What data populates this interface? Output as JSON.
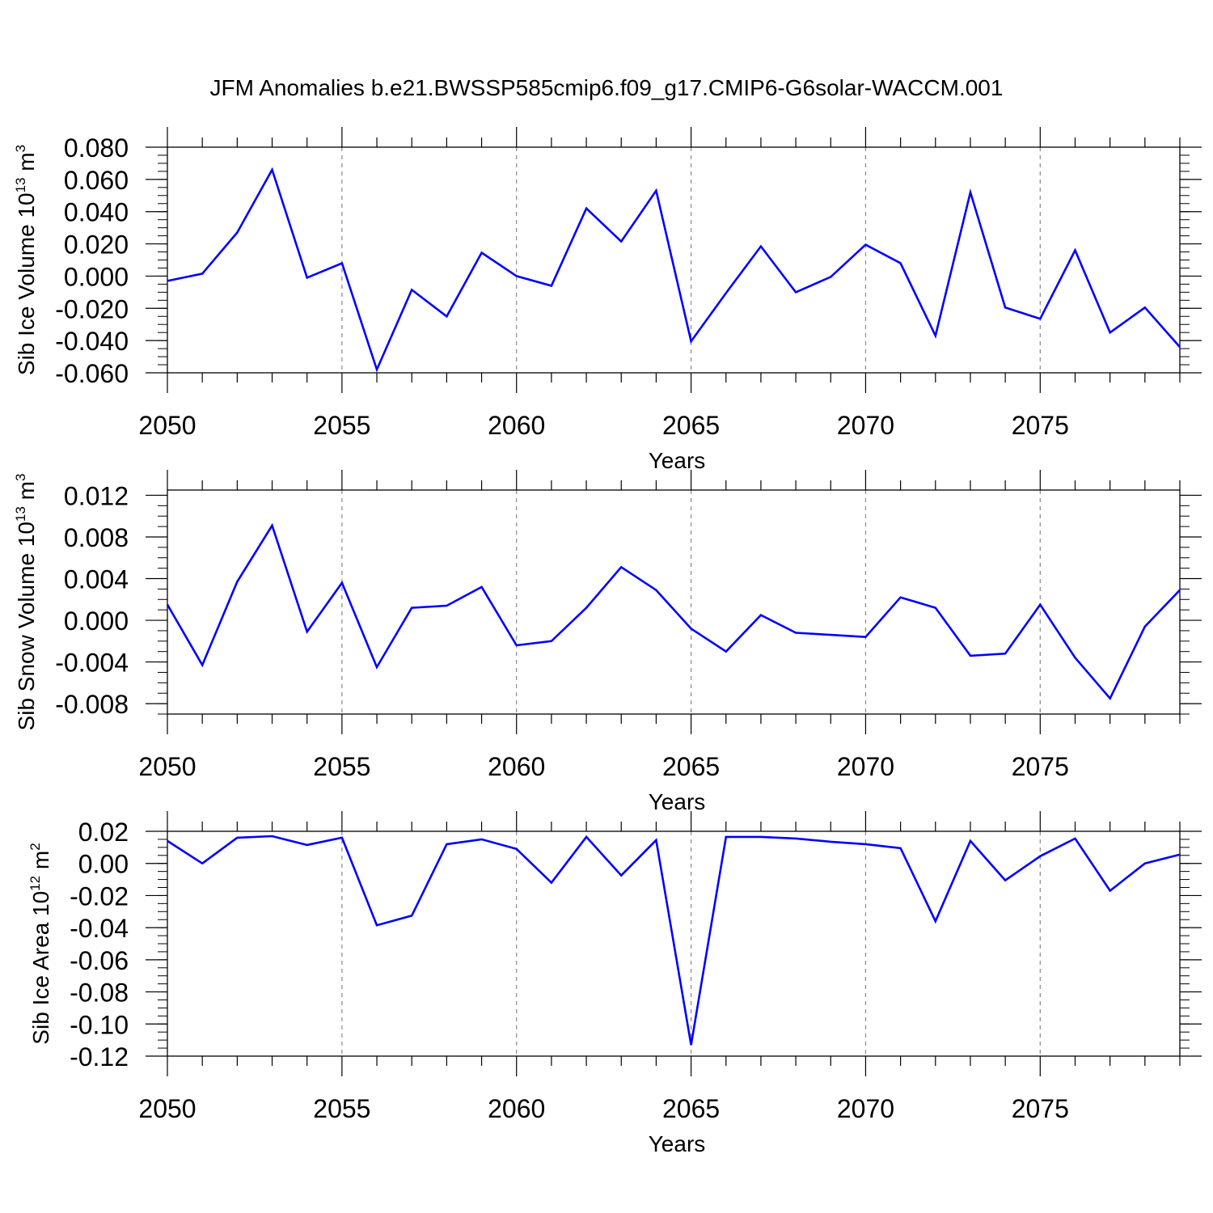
{
  "title": "JFM Anomalies b.e21.BWSSP585cmip6.f09_g17.CMIP6-G6solar-WACCM.001",
  "line_color": "#0000ff",
  "chart_data": [
    {
      "type": "line",
      "name": "sib-ice-volume",
      "xlabel": "Years",
      "ylabel_parts": [
        "Sib Ice Volume 10",
        "13",
        " m",
        "3"
      ],
      "xlim": [
        2050,
        2079
      ],
      "ylim": [
        -0.06,
        0.08
      ],
      "x_major_ticks": [
        2050,
        2055,
        2060,
        2065,
        2070,
        2075
      ],
      "x_tick_labels": [
        "2050",
        "2055",
        "2060",
        "2065",
        "2070",
        "2075"
      ],
      "y_ticks": [
        -0.06,
        -0.04,
        -0.02,
        0.0,
        0.02,
        0.04,
        0.06,
        0.08
      ],
      "y_tick_labels": [
        "-0.060",
        "-0.040",
        "-0.020",
        "0.000",
        "0.020",
        "0.040",
        "0.060",
        "0.080"
      ],
      "y_minor_step": 0.005,
      "x": [
        2050,
        2051,
        2052,
        2053,
        2054,
        2055,
        2056,
        2057,
        2058,
        2059,
        2060,
        2061,
        2062,
        2063,
        2064,
        2065,
        2066,
        2067,
        2068,
        2069,
        2070,
        2071,
        2072,
        2073,
        2074,
        2075,
        2076,
        2077,
        2078,
        2079
      ],
      "values": [
        -0.003,
        0.0015,
        0.027,
        0.066,
        -0.001,
        0.008,
        -0.058,
        -0.0085,
        -0.025,
        0.0145,
        0.0,
        -0.006,
        0.042,
        0.0215,
        0.053,
        -0.0405,
        -0.0105,
        0.0185,
        -0.01,
        -0.0005,
        0.0195,
        0.008,
        -0.037,
        0.052,
        -0.0195,
        -0.0265,
        0.016,
        -0.035,
        -0.0195,
        -0.044
      ]
    },
    {
      "type": "line",
      "name": "sib-snow-volume",
      "xlabel": "Years",
      "ylabel_parts": [
        "Sib Snow Volume 10",
        "13",
        " m",
        "3"
      ],
      "xlim": [
        2050,
        2079
      ],
      "ylim": [
        -0.009,
        0.0125
      ],
      "x_major_ticks": [
        2050,
        2055,
        2060,
        2065,
        2070,
        2075
      ],
      "x_tick_labels": [
        "2050",
        "2055",
        "2060",
        "2065",
        "2070",
        "2075"
      ],
      "y_ticks": [
        -0.008,
        -0.004,
        0.0,
        0.004,
        0.008,
        0.012
      ],
      "y_tick_labels": [
        "-0.008",
        "-0.004",
        "0.000",
        "0.004",
        "0.008",
        "0.012"
      ],
      "y_minor_step": 0.001,
      "x": [
        2050,
        2051,
        2052,
        2053,
        2054,
        2055,
        2056,
        2057,
        2058,
        2059,
        2060,
        2061,
        2062,
        2063,
        2064,
        2065,
        2066,
        2067,
        2068,
        2069,
        2070,
        2071,
        2072,
        2073,
        2074,
        2075,
        2076,
        2077,
        2078,
        2079
      ],
      "values": [
        0.0015,
        -0.0043,
        0.0037,
        0.0091,
        -0.0011,
        0.0036,
        -0.0045,
        0.0012,
        0.0014,
        0.0032,
        -0.0024,
        -0.002,
        0.0012,
        0.0051,
        0.0029,
        -0.0008,
        -0.003,
        0.0005,
        -0.0012,
        -0.0014,
        -0.0016,
        0.0022,
        0.0012,
        -0.0034,
        -0.0032,
        0.0015,
        -0.0036,
        -0.0075,
        -0.0006,
        0.0029
      ]
    },
    {
      "type": "line",
      "name": "sib-ice-area",
      "xlabel": "Years",
      "ylabel_parts": [
        "Sib Ice Area 10",
        "12",
        " m",
        "2"
      ],
      "xlim": [
        2050,
        2079
      ],
      "ylim": [
        -0.12,
        0.02
      ],
      "x_major_ticks": [
        2050,
        2055,
        2060,
        2065,
        2070,
        2075
      ],
      "x_tick_labels": [
        "2050",
        "2055",
        "2060",
        "2065",
        "2070",
        "2075"
      ],
      "y_ticks": [
        -0.12,
        -0.1,
        -0.08,
        -0.06,
        -0.04,
        -0.02,
        0.0,
        0.02
      ],
      "y_tick_labels": [
        "-0.12",
        "-0.10",
        "-0.08",
        "-0.06",
        "-0.04",
        "-0.02",
        "0.00",
        "0.02"
      ],
      "y_minor_step": 0.005,
      "x": [
        2050,
        2051,
        2052,
        2053,
        2054,
        2055,
        2056,
        2057,
        2058,
        2059,
        2060,
        2061,
        2062,
        2063,
        2064,
        2065,
        2066,
        2067,
        2068,
        2069,
        2070,
        2071,
        2072,
        2073,
        2074,
        2075,
        2076,
        2077,
        2078,
        2079
      ],
      "values": [
        0.014,
        0.0,
        0.016,
        0.017,
        0.0115,
        0.016,
        -0.0385,
        -0.0325,
        0.012,
        0.015,
        0.009,
        -0.012,
        0.0165,
        -0.0075,
        0.0145,
        -0.113,
        0.0165,
        0.0165,
        0.0155,
        0.0135,
        0.012,
        0.0095,
        -0.036,
        0.014,
        -0.0105,
        0.0045,
        0.0155,
        -0.017,
        0.0,
        0.0055
      ]
    }
  ]
}
